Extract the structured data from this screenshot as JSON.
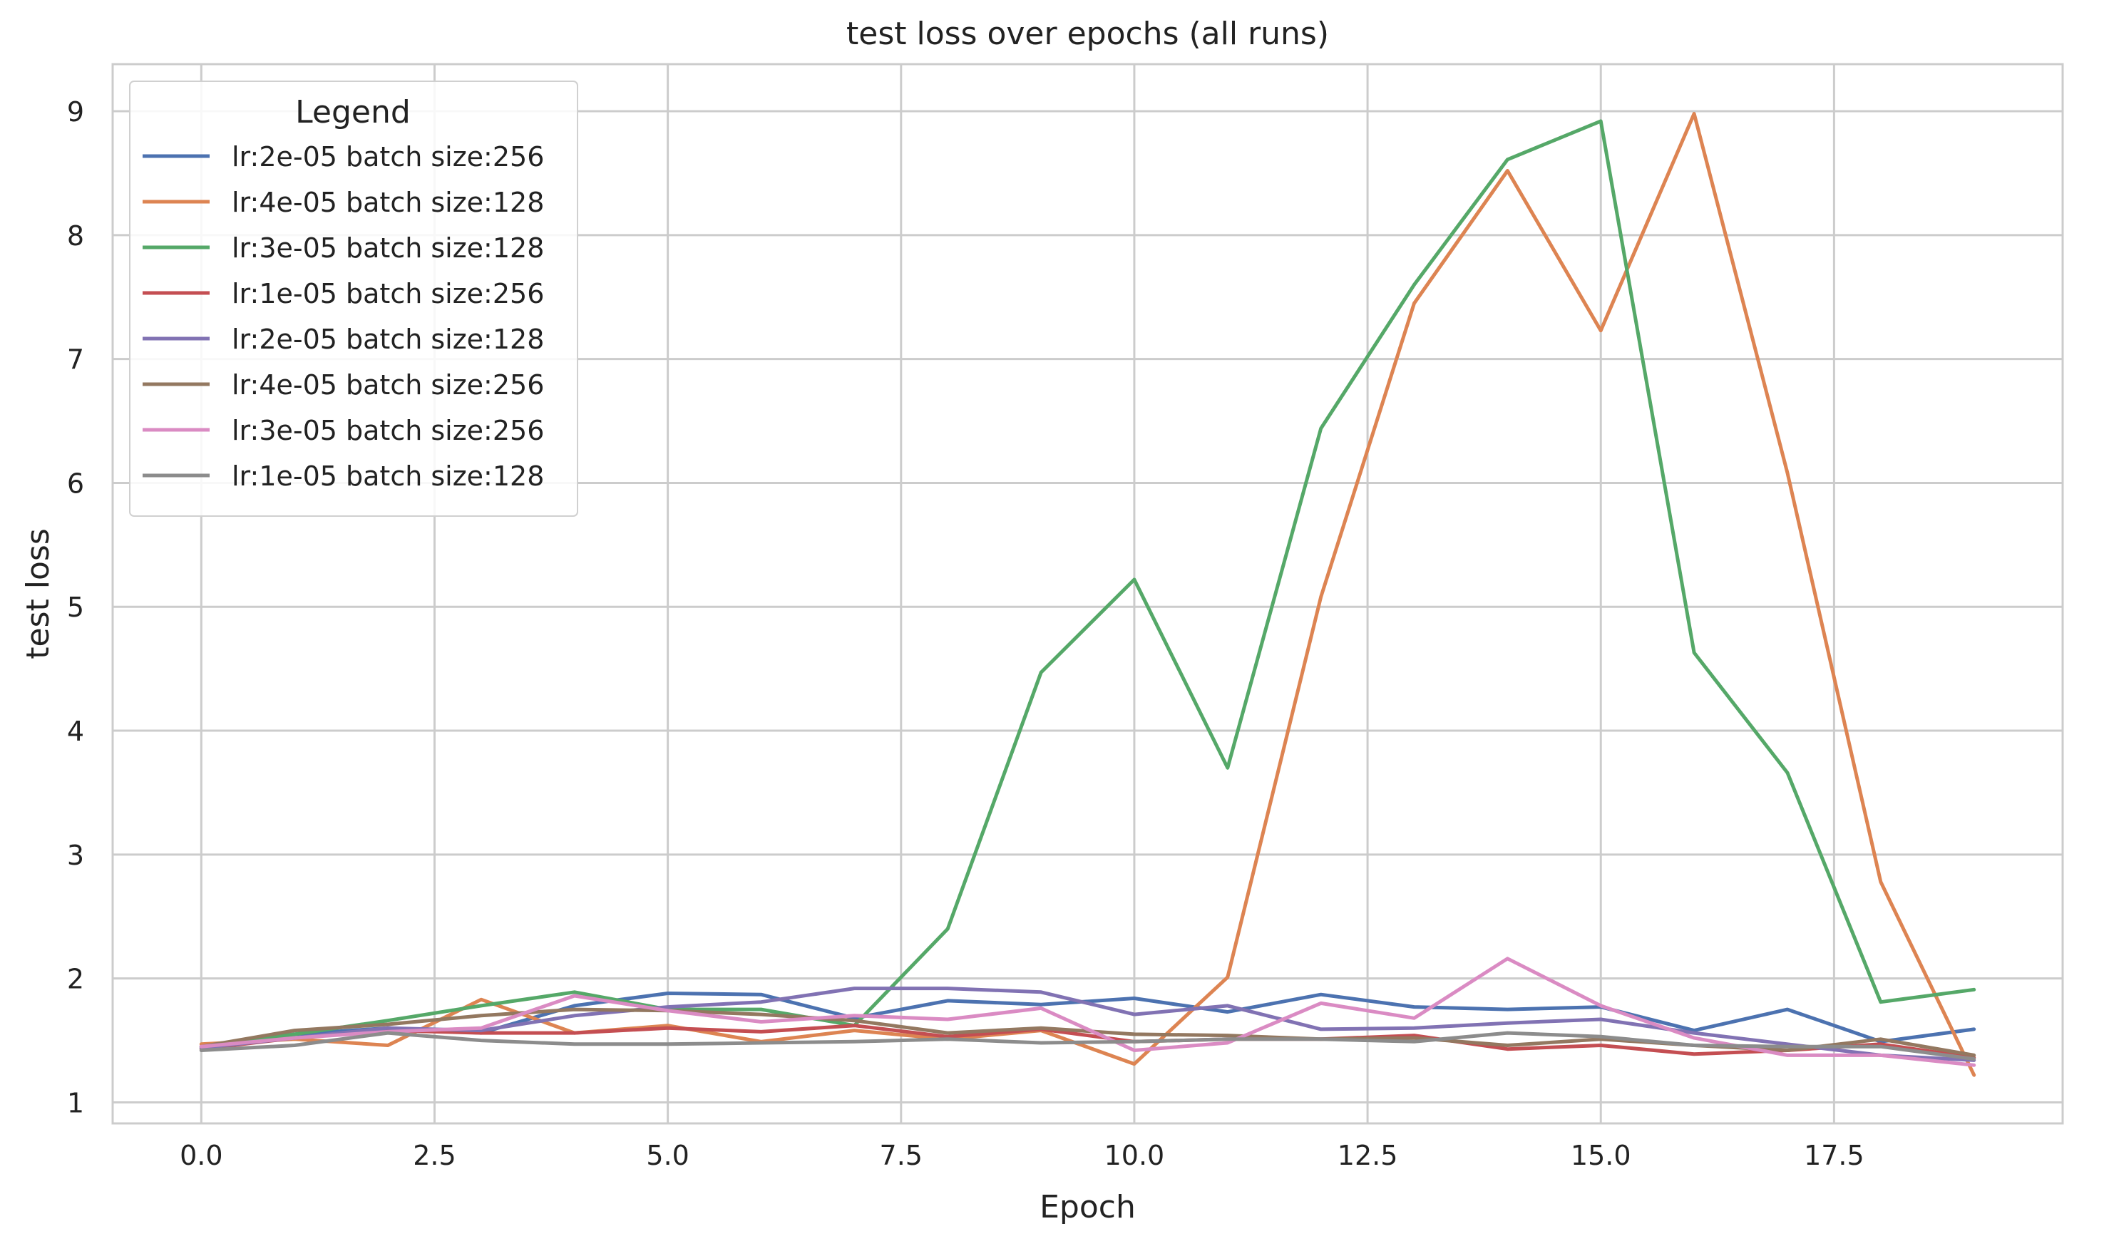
{
  "chart_data": {
    "type": "line",
    "title": "test loss over epochs (all runs)",
    "xlabel": "Epoch",
    "ylabel": "test loss",
    "xlim": [
      -0.95,
      19.95
    ],
    "ylim": [
      0.83,
      9.38
    ],
    "xticks": [
      0.0,
      2.5,
      5.0,
      7.5,
      10.0,
      12.5,
      15.0,
      17.5
    ],
    "xtick_labels": [
      "0.0",
      "2.5",
      "5.0",
      "7.5",
      "10.0",
      "12.5",
      "15.0",
      "17.5"
    ],
    "yticks": [
      1,
      2,
      3,
      4,
      5,
      6,
      7,
      8,
      9
    ],
    "ytick_labels": [
      "1",
      "2",
      "3",
      "4",
      "5",
      "6",
      "7",
      "8",
      "9"
    ],
    "grid": true,
    "legend_title": "Legend",
    "legend_position": "top-left",
    "x": [
      0,
      1,
      2,
      3,
      4,
      5,
      6,
      7,
      8,
      9,
      10,
      11,
      12,
      13,
      14,
      15,
      16,
      17,
      18,
      19
    ],
    "series": [
      {
        "name": "lr:2e-05 batch size:256",
        "color": "#4c72b0",
        "values": [
          1.45,
          1.55,
          1.6,
          1.56,
          1.78,
          1.88,
          1.87,
          1.68,
          1.82,
          1.79,
          1.84,
          1.73,
          1.87,
          1.77,
          1.75,
          1.77,
          1.58,
          1.75,
          1.49,
          1.59
        ]
      },
      {
        "name": "lr:4e-05 batch size:128",
        "color": "#dd8452",
        "values": [
          1.47,
          1.51,
          1.46,
          1.83,
          1.56,
          1.62,
          1.49,
          1.58,
          1.51,
          1.58,
          1.31,
          2.01,
          5.08,
          7.45,
          8.52,
          7.23,
          8.98,
          6.08,
          2.78,
          1.22
        ]
      },
      {
        "name": "lr:3e-05 batch size:128",
        "color": "#55a868",
        "values": [
          1.44,
          1.55,
          1.66,
          1.78,
          1.89,
          1.75,
          1.75,
          1.62,
          2.4,
          4.47,
          5.22,
          3.7,
          6.44,
          7.6,
          8.61,
          8.92,
          4.63,
          3.66,
          1.81,
          1.91
        ]
      },
      {
        "name": "lr:1e-05 batch size:256",
        "color": "#c44e52",
        "values": [
          1.43,
          1.52,
          1.58,
          1.56,
          1.56,
          1.6,
          1.57,
          1.62,
          1.53,
          1.59,
          1.49,
          1.51,
          1.51,
          1.54,
          1.43,
          1.46,
          1.39,
          1.42,
          1.47,
          1.36
        ]
      },
      {
        "name": "lr:2e-05 batch size:128",
        "color": "#8172b3",
        "values": [
          1.44,
          1.52,
          1.6,
          1.58,
          1.7,
          1.77,
          1.81,
          1.92,
          1.92,
          1.89,
          1.71,
          1.78,
          1.59,
          1.6,
          1.64,
          1.67,
          1.56,
          1.47,
          1.38,
          1.34
        ]
      },
      {
        "name": "lr:4e-05 batch size:256",
        "color": "#937860",
        "values": [
          1.45,
          1.58,
          1.63,
          1.7,
          1.75,
          1.74,
          1.71,
          1.66,
          1.56,
          1.6,
          1.55,
          1.54,
          1.51,
          1.52,
          1.46,
          1.51,
          1.46,
          1.42,
          1.51,
          1.38
        ]
      },
      {
        "name": "lr:3e-05 batch size:256",
        "color": "#da8bc3",
        "values": [
          1.45,
          1.52,
          1.57,
          1.6,
          1.86,
          1.74,
          1.65,
          1.7,
          1.67,
          1.76,
          1.42,
          1.48,
          1.8,
          1.68,
          2.16,
          1.78,
          1.52,
          1.38,
          1.38,
          1.3
        ]
      },
      {
        "name": "lr:1e-05 batch size:128",
        "color": "#8c8c8c",
        "values": [
          1.42,
          1.46,
          1.56,
          1.5,
          1.47,
          1.47,
          1.48,
          1.49,
          1.51,
          1.48,
          1.49,
          1.51,
          1.51,
          1.49,
          1.56,
          1.53,
          1.46,
          1.45,
          1.45,
          1.35
        ]
      }
    ]
  }
}
